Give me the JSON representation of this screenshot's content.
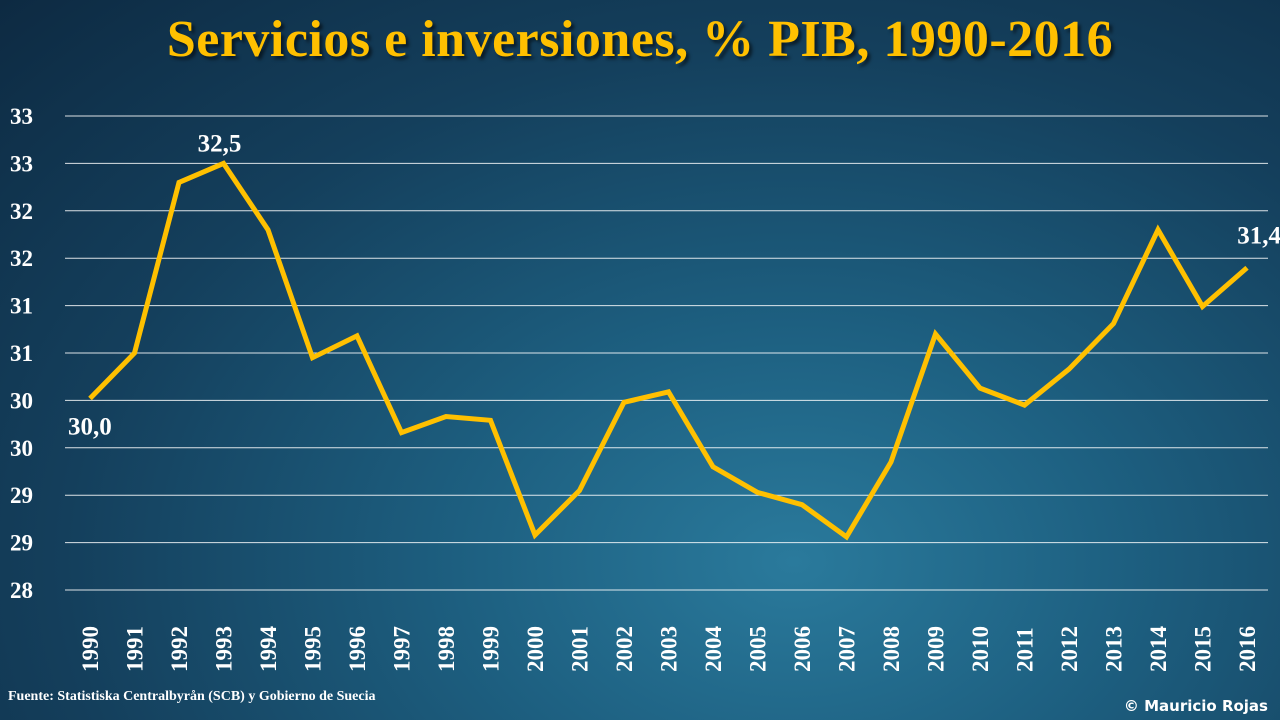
{
  "chart_data": {
    "type": "line",
    "title": "Servicios e inversiones, % PIB, 1990-2016",
    "xlabel": "",
    "ylabel": "",
    "x": [
      "1990",
      "1991",
      "1992",
      "1993",
      "1994",
      "1995",
      "1996",
      "1997",
      "1998",
      "1999",
      "2000",
      "2001",
      "2002",
      "2003",
      "2004",
      "2005",
      "2006",
      "2007",
      "2008",
      "2009",
      "2010",
      "2011",
      "2012",
      "2013",
      "2014",
      "2015",
      "2016"
    ],
    "series": [
      {
        "values": [
          30.02,
          30.5,
          32.3,
          32.5,
          31.8,
          30.45,
          30.68,
          29.66,
          29.83,
          29.79,
          28.58,
          29.05,
          29.98,
          30.09,
          29.3,
          29.03,
          28.9,
          28.56,
          29.35,
          30.7,
          30.13,
          29.95,
          30.33,
          30.81,
          31.8,
          30.99,
          31.4
        ],
        "color": "#ffc000"
      }
    ],
    "ylim": [
      28.0,
      33.0
    ],
    "yticks": [
      28.0,
      28.5,
      29.0,
      29.5,
      30.0,
      30.5,
      31.0,
      31.5,
      32.0,
      32.5,
      33.0
    ],
    "ytick_labels": [
      "28",
      "29",
      "29",
      "30",
      "30",
      "31",
      "31",
      "32",
      "32",
      "33",
      "33"
    ],
    "data_labels": [
      {
        "index": 0,
        "text": "30,0"
      },
      {
        "index": 3,
        "text": "32,5"
      },
      {
        "index": 26,
        "text": "31,4"
      }
    ],
    "grid": true,
    "legend": "none"
  },
  "footer": {
    "source": "Fuente: Statistiska Centralbyrån (SCB) y Gobierno de Suecia",
    "copyright": "© Mauricio Rojas"
  },
  "colors": {
    "title": "#ffc000",
    "line": "#ffc000",
    "grid": "#ffffff",
    "text": "#ffffff"
  }
}
